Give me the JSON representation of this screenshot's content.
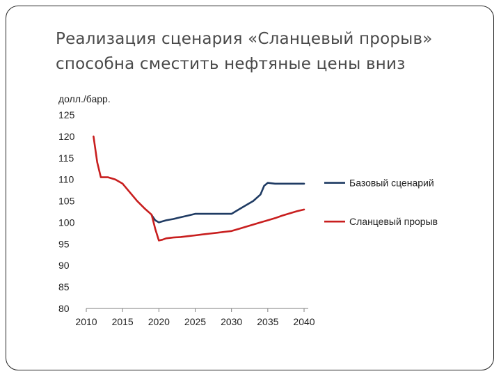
{
  "slide": {
    "title_line1": "Реализация сценария «Сланцевый прорыв»",
    "title_line2": "способна сместить нефтяные цены вниз"
  },
  "chart_data": {
    "type": "line",
    "ylabel": "долл./барр.",
    "xlim": [
      2010,
      2040
    ],
    "ylim": [
      80,
      125
    ],
    "x_ticks": [
      "2010",
      "2015",
      "2020",
      "2025",
      "2030",
      "2035",
      "2040"
    ],
    "y_ticks": [
      "125",
      "120",
      "115",
      "110",
      "105",
      "100",
      "95",
      "90",
      "85",
      "80"
    ],
    "grid": false,
    "legend_position": "right",
    "series": [
      {
        "name": "Базовый сценарий",
        "color": "#1f3b63",
        "x": [
          2019,
          2019.5,
          2020,
          2021,
          2022,
          2023,
          2024,
          2025,
          2026,
          2027,
          2028,
          2029,
          2030,
          2031,
          2032,
          2033,
          2034,
          2034.5,
          2035,
          2036,
          2037,
          2038,
          2039,
          2040
        ],
        "y": [
          101.7,
          100.5,
          100,
          100.5,
          100.8,
          101.2,
          101.6,
          102,
          102,
          102,
          102,
          102,
          102,
          103,
          104,
          105,
          106.5,
          108.5,
          109.2,
          109,
          109,
          109,
          109,
          109
        ]
      },
      {
        "name": "Сланцевый прорыв",
        "color": "#c81e1e",
        "x": [
          2011,
          2011.5,
          2012,
          2013,
          2014,
          2015,
          2016,
          2017,
          2018,
          2019,
          2019.5,
          2020,
          2020.5,
          2021,
          2022,
          2023,
          2024,
          2025,
          2026,
          2027,
          2028,
          2029,
          2030,
          2031,
          2032,
          2033,
          2034,
          2035,
          2036,
          2037,
          2038,
          2039,
          2040
        ],
        "y": [
          120,
          114,
          110.5,
          110.5,
          110,
          109,
          107,
          105,
          103.3,
          101.8,
          98.5,
          95.8,
          96,
          96.3,
          96.5,
          96.6,
          96.8,
          97,
          97.2,
          97.4,
          97.6,
          97.8,
          98,
          98.5,
          99,
          99.5,
          100,
          100.5,
          101,
          101.6,
          102.1,
          102.6,
          103
        ]
      }
    ]
  }
}
